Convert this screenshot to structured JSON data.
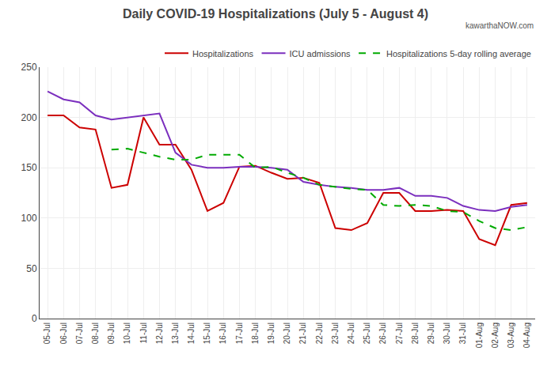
{
  "chart_data": {
    "type": "line",
    "title": "Daily COVID-19 Hospitalizations (July 5 - August 4)",
    "annotations": [
      "kawarthaNOW.com"
    ],
    "categories": [
      "05-Jul",
      "06-Jul",
      "07-Jul",
      "08-Jul",
      "09-Jul",
      "10-Jul",
      "11-Jul",
      "12-Jul",
      "13-Jul",
      "14-Jul",
      "15-Jul",
      "16-Jul",
      "17-Jul",
      "18-Jul",
      "19-Jul",
      "20-Jul",
      "21-Jul",
      "22-Jul",
      "23-Jul",
      "24-Jul",
      "25-Jul",
      "26-Jul",
      "27-Jul",
      "28-Jul",
      "29-Jul",
      "30-Jul",
      "31-Jul",
      "01-Aug",
      "02-Aug",
      "03-Aug",
      "04-Aug"
    ],
    "series": [
      {
        "name": "Hospitalizations",
        "color": "#cc0000",
        "line_style": "solid",
        "values": [
          202,
          202,
          190,
          188,
          130,
          133,
          200,
          173,
          173,
          148,
          107,
          115,
          151,
          152,
          145,
          139,
          140,
          135,
          90,
          88,
          95,
          125,
          125,
          107,
          107,
          108,
          107,
          79,
          73,
          113,
          115
        ]
      },
      {
        "name": "ICU admissions",
        "color": "#7b2fbe",
        "line_style": "solid",
        "values": [
          226,
          218,
          215,
          202,
          198,
          200,
          202,
          204,
          165,
          153,
          150,
          150,
          151,
          151,
          150,
          148,
          136,
          133,
          131,
          130,
          128,
          128,
          130,
          122,
          122,
          120,
          112,
          108,
          107,
          111,
          113
        ]
      },
      {
        "name": "Hospitalizations 5-day rolling average",
        "color": "#00aa00",
        "line_style": "dashed",
        "values": [
          null,
          null,
          null,
          null,
          168,
          169,
          165,
          161,
          158,
          158,
          163,
          163,
          163,
          150,
          151,
          145,
          140,
          133,
          131,
          129,
          128,
          113,
          112,
          113,
          112,
          107,
          106,
          97,
          90,
          88,
          91
        ]
      }
    ],
    "ylim": [
      0,
      250
    ],
    "yticks": [
      0,
      50,
      100,
      150,
      200,
      250
    ],
    "grid": true,
    "legend": "upper right"
  }
}
